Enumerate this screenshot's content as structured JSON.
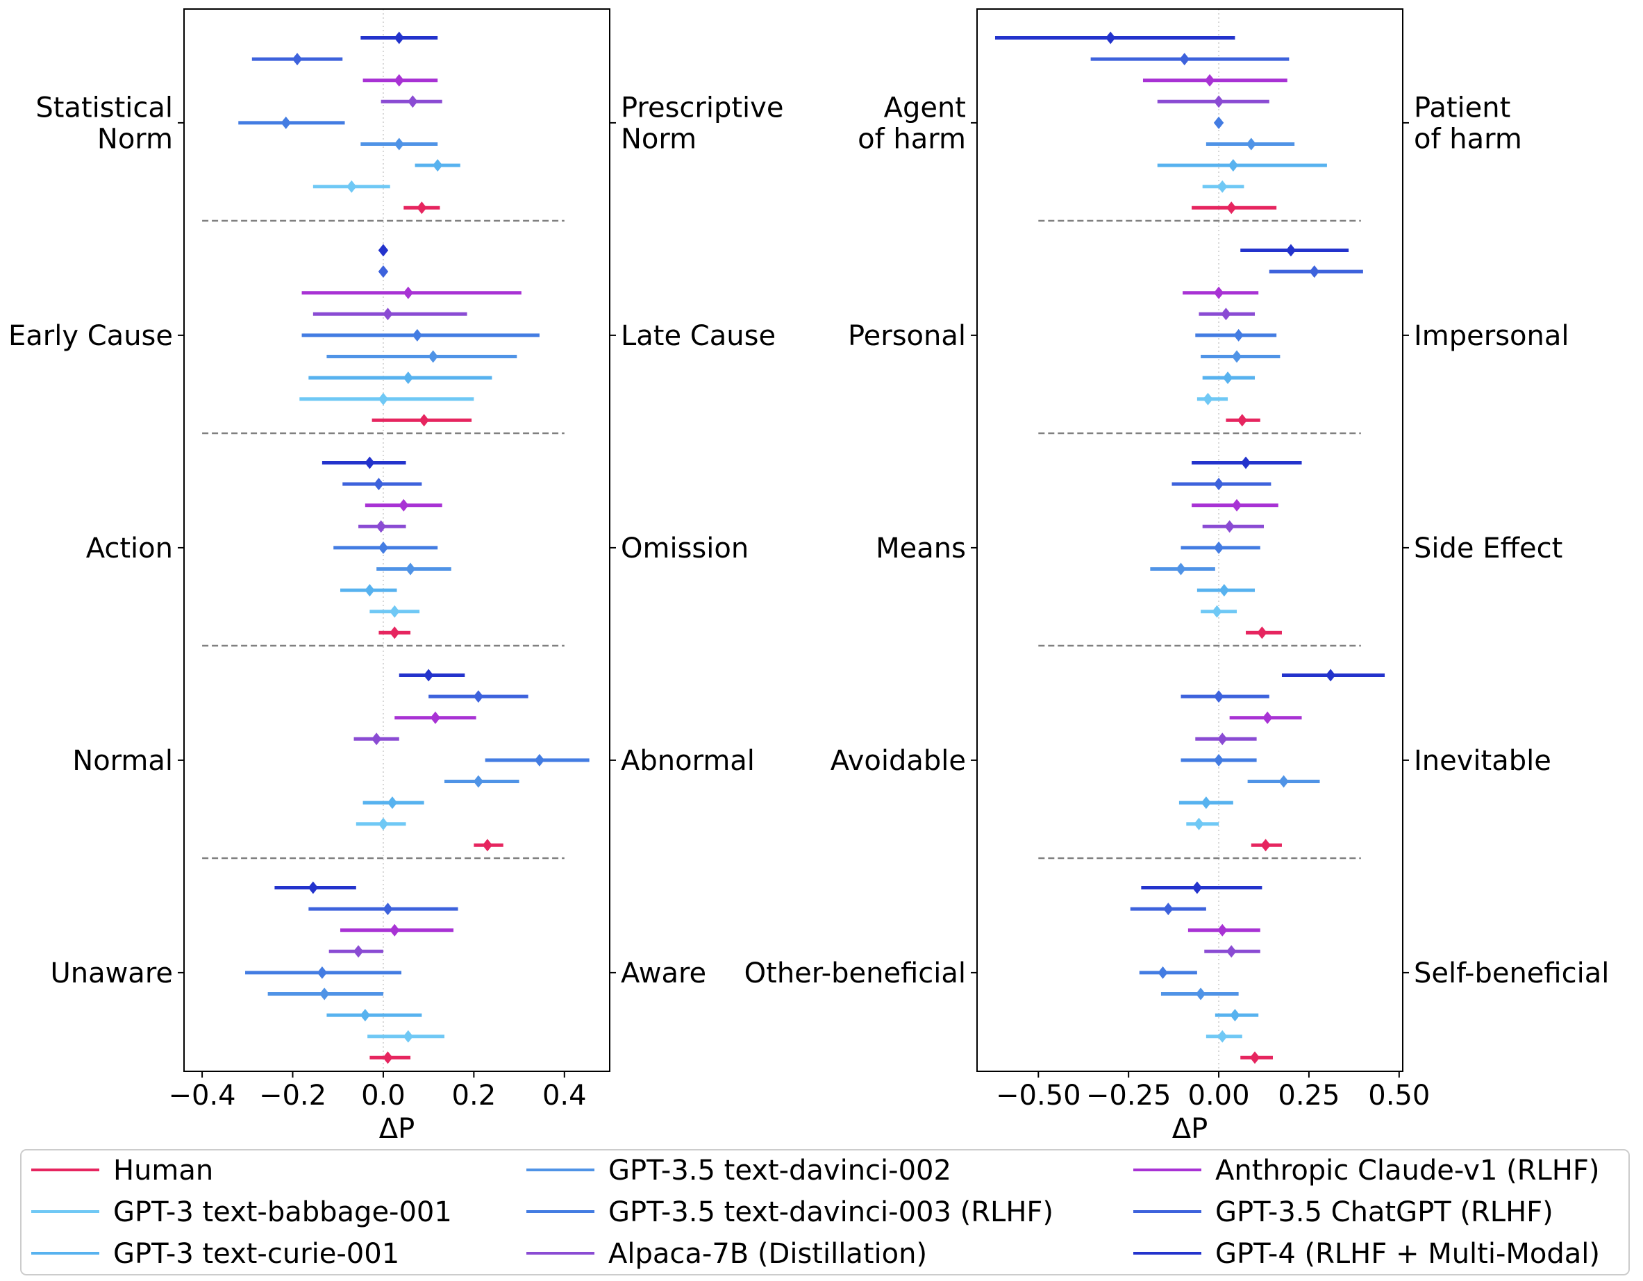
{
  "chart_data": [
    {
      "type": "errorbar-forest",
      "xlabel": "ΔP",
      "xlim": [
        -0.44,
        0.5
      ],
      "xticks": [
        -0.4,
        -0.2,
        0.0,
        0.2,
        0.4
      ],
      "xtick_labels": [
        "−0.4",
        "−0.2",
        "0.0",
        "0.2",
        "0.4"
      ],
      "groups": [
        {
          "left_label": "Statistical\nNorm",
          "right_label": "Prescriptive\nNorm",
          "points": [
            {
              "model": "GPT-4 (RLHF + Multi-Modal)",
              "mean": 0.035,
              "lo": -0.05,
              "hi": 0.12
            },
            {
              "model": "GPT-3.5 ChatGPT (RLHF)",
              "mean": -0.19,
              "lo": -0.29,
              "hi": -0.09
            },
            {
              "model": "Anthropic Claude-v1 (RLHF)",
              "mean": 0.035,
              "lo": -0.045,
              "hi": 0.12
            },
            {
              "model": "Alpaca-7B (Distillation)",
              "mean": 0.065,
              "lo": -0.005,
              "hi": 0.13
            },
            {
              "model": "GPT-3.5 text-davinci-003 (RLHF)",
              "mean": -0.215,
              "lo": -0.32,
              "hi": -0.085
            },
            {
              "model": "GPT-3.5 text-davinci-002",
              "mean": 0.035,
              "lo": -0.05,
              "hi": 0.12
            },
            {
              "model": "GPT-3 text-curie-001",
              "mean": 0.12,
              "lo": 0.07,
              "hi": 0.17
            },
            {
              "model": "GPT-3 text-babbage-001",
              "mean": -0.07,
              "lo": -0.155,
              "hi": 0.015
            },
            {
              "model": "Human",
              "mean": 0.085,
              "lo": 0.045,
              "hi": 0.125
            }
          ]
        },
        {
          "left_label": "Early Cause",
          "right_label": "Late Cause",
          "points": [
            {
              "model": "GPT-4 (RLHF + Multi-Modal)",
              "mean": 0.0,
              "lo": 0.0,
              "hi": 0.0
            },
            {
              "model": "GPT-3.5 ChatGPT (RLHF)",
              "mean": 0.0,
              "lo": 0.0,
              "hi": 0.0
            },
            {
              "model": "Anthropic Claude-v1 (RLHF)",
              "mean": 0.055,
              "lo": -0.18,
              "hi": 0.305
            },
            {
              "model": "Alpaca-7B (Distillation)",
              "mean": 0.01,
              "lo": -0.155,
              "hi": 0.185
            },
            {
              "model": "GPT-3.5 text-davinci-003 (RLHF)",
              "mean": 0.075,
              "lo": -0.18,
              "hi": 0.345
            },
            {
              "model": "GPT-3.5 text-davinci-002",
              "mean": 0.11,
              "lo": -0.125,
              "hi": 0.295
            },
            {
              "model": "GPT-3 text-curie-001",
              "mean": 0.055,
              "lo": -0.165,
              "hi": 0.24
            },
            {
              "model": "GPT-3 text-babbage-001",
              "mean": 0.0,
              "lo": -0.185,
              "hi": 0.2
            },
            {
              "model": "Human",
              "mean": 0.09,
              "lo": -0.025,
              "hi": 0.195
            }
          ]
        },
        {
          "left_label": "Action",
          "right_label": "Omission",
          "points": [
            {
              "model": "GPT-4 (RLHF + Multi-Modal)",
              "mean": -0.03,
              "lo": -0.135,
              "hi": 0.05
            },
            {
              "model": "GPT-3.5 ChatGPT (RLHF)",
              "mean": -0.01,
              "lo": -0.09,
              "hi": 0.085
            },
            {
              "model": "Anthropic Claude-v1 (RLHF)",
              "mean": 0.045,
              "lo": -0.04,
              "hi": 0.13
            },
            {
              "model": "Alpaca-7B (Distillation)",
              "mean": -0.005,
              "lo": -0.055,
              "hi": 0.05
            },
            {
              "model": "GPT-3.5 text-davinci-003 (RLHF)",
              "mean": 0.0,
              "lo": -0.11,
              "hi": 0.12
            },
            {
              "model": "GPT-3.5 text-davinci-002",
              "mean": 0.06,
              "lo": -0.015,
              "hi": 0.15
            },
            {
              "model": "GPT-3 text-curie-001",
              "mean": -0.03,
              "lo": -0.095,
              "hi": 0.03
            },
            {
              "model": "GPT-3 text-babbage-001",
              "mean": 0.025,
              "lo": -0.03,
              "hi": 0.08
            },
            {
              "model": "Human",
              "mean": 0.025,
              "lo": -0.01,
              "hi": 0.06
            }
          ]
        },
        {
          "left_label": "Normal",
          "right_label": "Abnormal",
          "points": [
            {
              "model": "GPT-4 (RLHF + Multi-Modal)",
              "mean": 0.1,
              "lo": 0.035,
              "hi": 0.18
            },
            {
              "model": "GPT-3.5 ChatGPT (RLHF)",
              "mean": 0.21,
              "lo": 0.1,
              "hi": 0.32
            },
            {
              "model": "Anthropic Claude-v1 (RLHF)",
              "mean": 0.115,
              "lo": 0.025,
              "hi": 0.205
            },
            {
              "model": "Alpaca-7B (Distillation)",
              "mean": -0.015,
              "lo": -0.065,
              "hi": 0.035
            },
            {
              "model": "GPT-3.5 text-davinci-003 (RLHF)",
              "mean": 0.345,
              "lo": 0.225,
              "hi": 0.455
            },
            {
              "model": "GPT-3.5 text-davinci-002",
              "mean": 0.21,
              "lo": 0.135,
              "hi": 0.3
            },
            {
              "model": "GPT-3 text-curie-001",
              "mean": 0.02,
              "lo": -0.045,
              "hi": 0.09
            },
            {
              "model": "GPT-3 text-babbage-001",
              "mean": 0.0,
              "lo": -0.06,
              "hi": 0.05
            },
            {
              "model": "Human",
              "mean": 0.23,
              "lo": 0.2,
              "hi": 0.265
            }
          ]
        },
        {
          "left_label": "Unaware",
          "right_label": "Aware",
          "points": [
            {
              "model": "GPT-4 (RLHF + Multi-Modal)",
              "mean": -0.155,
              "lo": -0.24,
              "hi": -0.06
            },
            {
              "model": "GPT-3.5 ChatGPT (RLHF)",
              "mean": 0.01,
              "lo": -0.165,
              "hi": 0.165
            },
            {
              "model": "Anthropic Claude-v1 (RLHF)",
              "mean": 0.025,
              "lo": -0.095,
              "hi": 0.155
            },
            {
              "model": "Alpaca-7B (Distillation)",
              "mean": -0.055,
              "lo": -0.12,
              "hi": 0.0
            },
            {
              "model": "GPT-3.5 text-davinci-003 (RLHF)",
              "mean": -0.135,
              "lo": -0.305,
              "hi": 0.04
            },
            {
              "model": "GPT-3.5 text-davinci-002",
              "mean": -0.13,
              "lo": -0.255,
              "hi": 0.0
            },
            {
              "model": "GPT-3 text-curie-001",
              "mean": -0.04,
              "lo": -0.125,
              "hi": 0.085
            },
            {
              "model": "GPT-3 text-babbage-001",
              "mean": 0.055,
              "lo": -0.035,
              "hi": 0.135
            },
            {
              "model": "Human",
              "mean": 0.01,
              "lo": -0.03,
              "hi": 0.06
            }
          ]
        }
      ]
    },
    {
      "type": "errorbar-forest",
      "xlabel": "ΔP",
      "xlim": [
        -0.67,
        0.51
      ],
      "xticks": [
        -0.5,
        -0.25,
        0.0,
        0.25,
        0.5
      ],
      "xtick_labels": [
        "−0.50",
        "−0.25",
        "0.00",
        "0.25",
        "0.50"
      ],
      "groups": [
        {
          "left_label": "Agent\nof harm",
          "right_label": "Patient\nof harm",
          "points": [
            {
              "model": "GPT-4 (RLHF + Multi-Modal)",
              "mean": -0.3,
              "lo": -0.62,
              "hi": 0.045
            },
            {
              "model": "GPT-3.5 ChatGPT (RLHF)",
              "mean": -0.095,
              "lo": -0.355,
              "hi": 0.195
            },
            {
              "model": "Anthropic Claude-v1 (RLHF)",
              "mean": -0.025,
              "lo": -0.21,
              "hi": 0.19
            },
            {
              "model": "Alpaca-7B (Distillation)",
              "mean": 0.0,
              "lo": -0.17,
              "hi": 0.14
            },
            {
              "model": "GPT-3.5 text-davinci-003 (RLHF)",
              "mean": 0.0,
              "lo": 0.0,
              "hi": 0.0
            },
            {
              "model": "GPT-3.5 text-davinci-002",
              "mean": 0.09,
              "lo": -0.035,
              "hi": 0.21
            },
            {
              "model": "GPT-3 text-curie-001",
              "mean": 0.04,
              "lo": -0.17,
              "hi": 0.3
            },
            {
              "model": "GPT-3 text-babbage-001",
              "mean": 0.01,
              "lo": -0.045,
              "hi": 0.07
            },
            {
              "model": "Human",
              "mean": 0.035,
              "lo": -0.075,
              "hi": 0.16
            }
          ]
        },
        {
          "left_label": "Personal",
          "right_label": "Impersonal",
          "points": [
            {
              "model": "GPT-4 (RLHF + Multi-Modal)",
              "mean": 0.2,
              "lo": 0.06,
              "hi": 0.36
            },
            {
              "model": "GPT-3.5 ChatGPT (RLHF)",
              "mean": 0.265,
              "lo": 0.14,
              "hi": 0.4
            },
            {
              "model": "Anthropic Claude-v1 (RLHF)",
              "mean": 0.0,
              "lo": -0.1,
              "hi": 0.11
            },
            {
              "model": "Alpaca-7B (Distillation)",
              "mean": 0.02,
              "lo": -0.055,
              "hi": 0.1
            },
            {
              "model": "GPT-3.5 text-davinci-003 (RLHF)",
              "mean": 0.055,
              "lo": -0.065,
              "hi": 0.16
            },
            {
              "model": "GPT-3.5 text-davinci-002",
              "mean": 0.05,
              "lo": -0.05,
              "hi": 0.17
            },
            {
              "model": "GPT-3 text-curie-001",
              "mean": 0.025,
              "lo": -0.045,
              "hi": 0.1
            },
            {
              "model": "GPT-3 text-babbage-001",
              "mean": -0.03,
              "lo": -0.06,
              "hi": 0.025
            },
            {
              "model": "Human",
              "mean": 0.065,
              "lo": 0.02,
              "hi": 0.115
            }
          ]
        },
        {
          "left_label": "Means",
          "right_label": "Side Effect",
          "points": [
            {
              "model": "GPT-4 (RLHF + Multi-Modal)",
              "mean": 0.075,
              "lo": -0.075,
              "hi": 0.23
            },
            {
              "model": "GPT-3.5 ChatGPT (RLHF)",
              "mean": 0.0,
              "lo": -0.13,
              "hi": 0.145
            },
            {
              "model": "Anthropic Claude-v1 (RLHF)",
              "mean": 0.05,
              "lo": -0.075,
              "hi": 0.165
            },
            {
              "model": "Alpaca-7B (Distillation)",
              "mean": 0.03,
              "lo": -0.045,
              "hi": 0.125
            },
            {
              "model": "GPT-3.5 text-davinci-003 (RLHF)",
              "mean": 0.0,
              "lo": -0.105,
              "hi": 0.115
            },
            {
              "model": "GPT-3.5 text-davinci-002",
              "mean": -0.105,
              "lo": -0.19,
              "hi": -0.01
            },
            {
              "model": "GPT-3 text-curie-001",
              "mean": 0.015,
              "lo": -0.06,
              "hi": 0.1
            },
            {
              "model": "GPT-3 text-babbage-001",
              "mean": -0.005,
              "lo": -0.05,
              "hi": 0.05
            },
            {
              "model": "Human",
              "mean": 0.12,
              "lo": 0.075,
              "hi": 0.175
            }
          ]
        },
        {
          "left_label": "Avoidable",
          "right_label": "Inevitable",
          "points": [
            {
              "model": "GPT-4 (RLHF + Multi-Modal)",
              "mean": 0.31,
              "lo": 0.175,
              "hi": 0.46
            },
            {
              "model": "GPT-3.5 ChatGPT (RLHF)",
              "mean": 0.0,
              "lo": -0.105,
              "hi": 0.14
            },
            {
              "model": "Anthropic Claude-v1 (RLHF)",
              "mean": 0.135,
              "lo": 0.03,
              "hi": 0.23
            },
            {
              "model": "Alpaca-7B (Distillation)",
              "mean": 0.01,
              "lo": -0.065,
              "hi": 0.105
            },
            {
              "model": "GPT-3.5 text-davinci-003 (RLHF)",
              "mean": 0.0,
              "lo": -0.105,
              "hi": 0.105
            },
            {
              "model": "GPT-3.5 text-davinci-002",
              "mean": 0.18,
              "lo": 0.08,
              "hi": 0.28
            },
            {
              "model": "GPT-3 text-curie-001",
              "mean": -0.035,
              "lo": -0.11,
              "hi": 0.04
            },
            {
              "model": "GPT-3 text-babbage-001",
              "mean": -0.055,
              "lo": -0.09,
              "hi": 0.0
            },
            {
              "model": "Human",
              "mean": 0.13,
              "lo": 0.09,
              "hi": 0.175
            }
          ]
        },
        {
          "left_label": "Other-beneficial",
          "right_label": "Self-beneficial",
          "points": [
            {
              "model": "GPT-4 (RLHF + Multi-Modal)",
              "mean": -0.06,
              "lo": -0.215,
              "hi": 0.12
            },
            {
              "model": "GPT-3.5 ChatGPT (RLHF)",
              "mean": -0.14,
              "lo": -0.245,
              "hi": -0.035
            },
            {
              "model": "Anthropic Claude-v1 (RLHF)",
              "mean": 0.01,
              "lo": -0.085,
              "hi": 0.115
            },
            {
              "model": "Alpaca-7B (Distillation)",
              "mean": 0.035,
              "lo": -0.04,
              "hi": 0.115
            },
            {
              "model": "GPT-3.5 text-davinci-003 (RLHF)",
              "mean": -0.155,
              "lo": -0.22,
              "hi": -0.06
            },
            {
              "model": "GPT-3.5 text-davinci-002",
              "mean": -0.05,
              "lo": -0.16,
              "hi": 0.055
            },
            {
              "model": "GPT-3 text-curie-001",
              "mean": 0.045,
              "lo": -0.01,
              "hi": 0.11
            },
            {
              "model": "GPT-3 text-babbage-001",
              "mean": 0.01,
              "lo": -0.035,
              "hi": 0.065
            },
            {
              "model": "Human",
              "mean": 0.1,
              "lo": 0.06,
              "hi": 0.15
            }
          ]
        }
      ]
    }
  ],
  "legend": {
    "placement": "bottom",
    "items": [
      {
        "label": "Human",
        "color": "#e6255f"
      },
      {
        "label": "GPT-3 text-babbage-001",
        "color": "#6fc8f5"
      },
      {
        "label": "GPT-3 text-curie-001",
        "color": "#57b2ef"
      },
      {
        "label": "GPT-3.5 text-davinci-002",
        "color": "#4f93e6"
      },
      {
        "label": "GPT-3.5 text-davinci-003 (RLHF)",
        "color": "#437ce2"
      },
      {
        "label": "Alpaca-7B (Distillation)",
        "color": "#8a4bd3"
      },
      {
        "label": "Anthropic Claude-v1 (RLHF)",
        "color": "#a832d4"
      },
      {
        "label": "GPT-3.5 ChatGPT (RLHF)",
        "color": "#3d62dc"
      },
      {
        "label": "GPT-4 (RLHF + Multi-Modal)",
        "color": "#2333cc"
      }
    ]
  }
}
